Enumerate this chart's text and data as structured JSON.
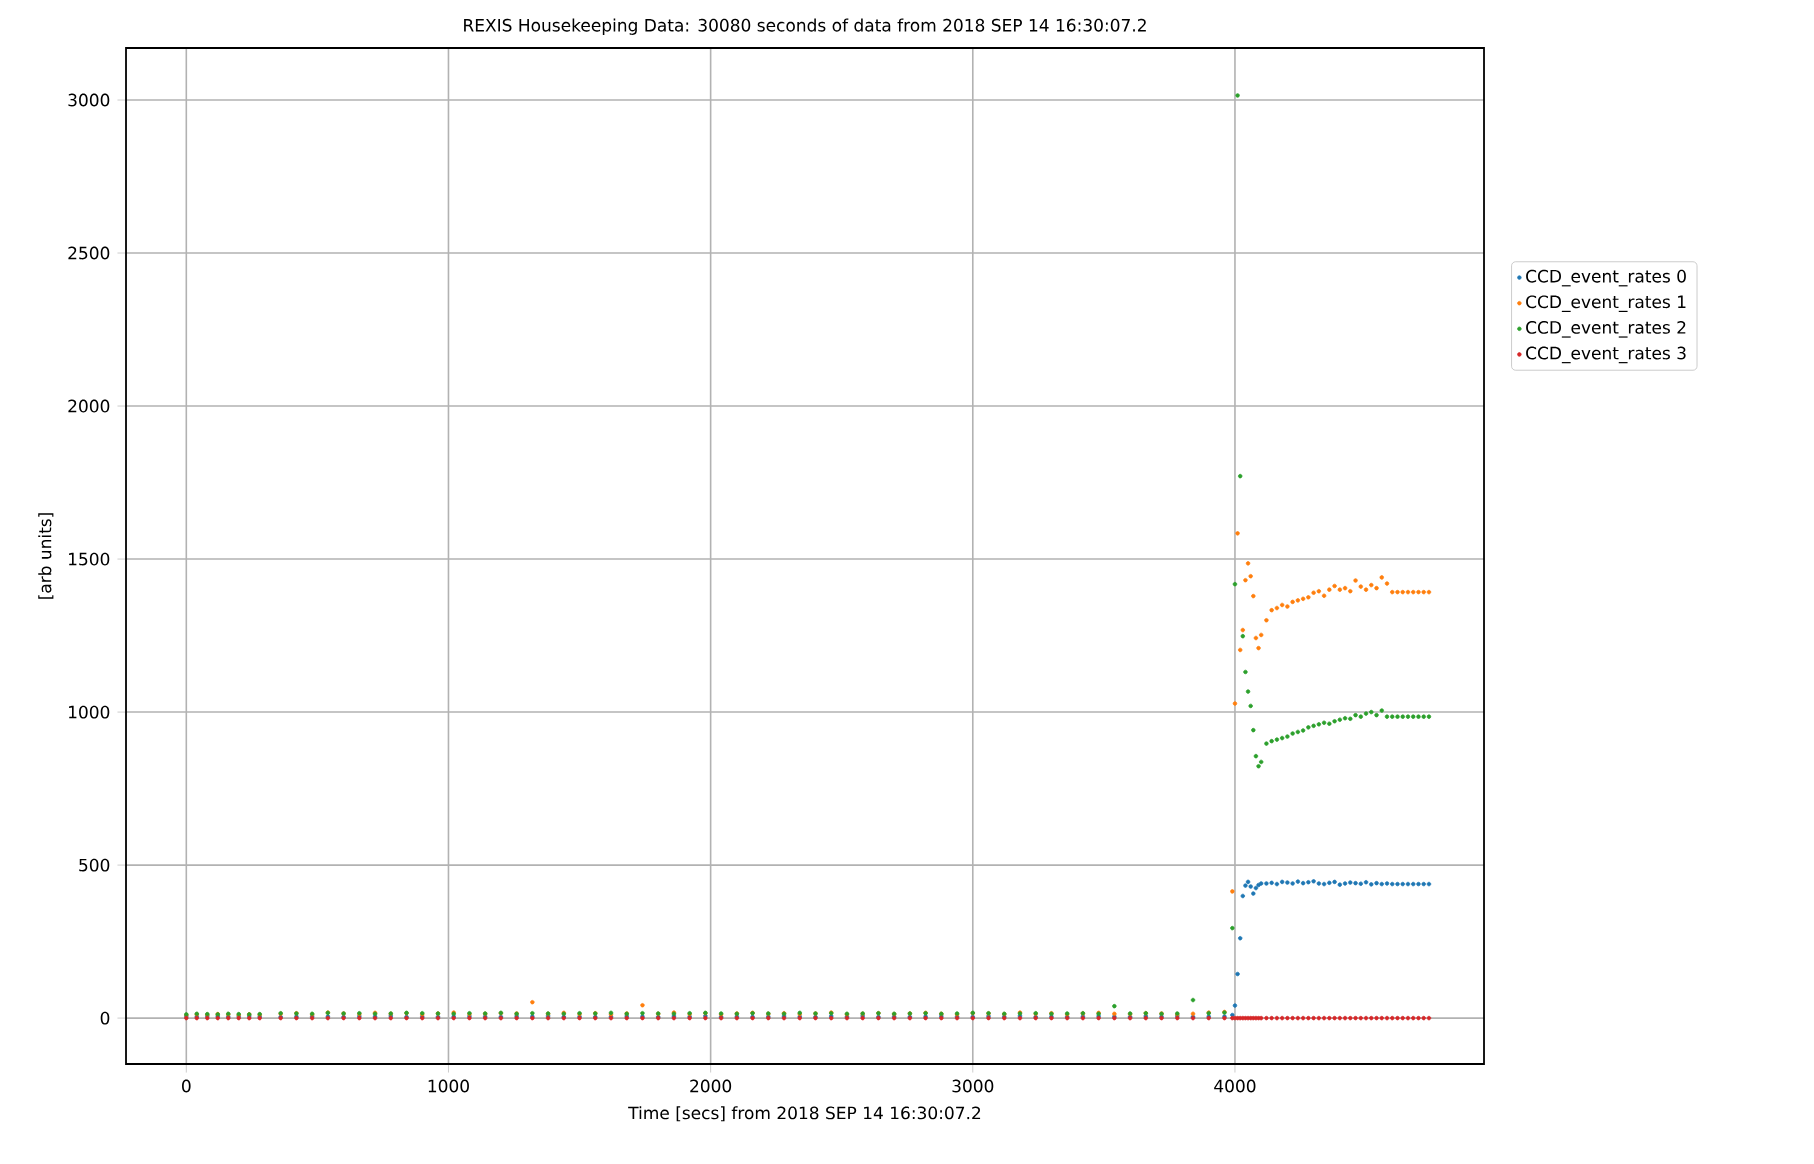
{
  "chart_data": {
    "type": "scatter",
    "title": "REXIS Housekeeping Data: 30080 seconds of data from 2018 SEP 14 16:30:07.2",
    "xlabel": "Time [secs] from 2018 SEP 14 16:30:07.2",
    "ylabel": "[arb units]",
    "xlim": [
      -230,
      4950
    ],
    "ylim": [
      -150,
      3170
    ],
    "xticks": [
      0,
      1000,
      2000,
      3000,
      4000
    ],
    "yticks": [
      0,
      500,
      1000,
      1500,
      2000,
      2500,
      3000
    ],
    "grid": true,
    "legend": "right",
    "marker": "circle",
    "x": [
      0,
      40,
      80,
      120,
      160,
      200,
      240,
      280,
      360,
      420,
      480,
      540,
      600,
      660,
      720,
      780,
      840,
      900,
      960,
      1020,
      1080,
      1140,
      1200,
      1260,
      1320,
      1380,
      1440,
      1500,
      1560,
      1620,
      1680,
      1740,
      1800,
      1860,
      1920,
      1980,
      2040,
      2100,
      2160,
      2220,
      2280,
      2340,
      2400,
      2460,
      2520,
      2580,
      2640,
      2700,
      2760,
      2820,
      2880,
      2940,
      3000,
      3060,
      3120,
      3180,
      3240,
      3300,
      3360,
      3420,
      3480,
      3540,
      3600,
      3660,
      3720,
      3780,
      3840,
      3900,
      3960,
      3990,
      4000,
      4010,
      4020,
      4030,
      4040,
      4050,
      4060,
      4070,
      4080,
      4090,
      4100,
      4120,
      4140,
      4160,
      4180,
      4200,
      4220,
      4240,
      4260,
      4280,
      4300,
      4320,
      4340,
      4360,
      4380,
      4400,
      4420,
      4440,
      4460,
      4480,
      4500,
      4520,
      4540,
      4560,
      4580,
      4600,
      4620,
      4640,
      4660,
      4680,
      4700,
      4720,
      4740
    ],
    "series": [
      {
        "name": "CCD_event_rates 0",
        "color": "#1f77b4",
        "values": [
          6,
          5,
          7,
          6,
          5,
          6,
          7,
          5,
          4,
          5,
          6,
          5,
          4,
          6,
          5,
          7,
          4,
          5,
          4,
          5,
          6,
          5,
          4,
          6,
          5,
          7,
          4,
          5,
          4,
          5,
          6,
          5,
          4,
          6,
          5,
          7,
          4,
          5,
          4,
          5,
          6,
          5,
          4,
          6,
          5,
          7,
          4,
          5,
          4,
          5,
          6,
          5,
          4,
          6,
          5,
          7,
          4,
          5,
          4,
          5,
          6,
          5,
          4,
          6,
          5,
          7,
          4,
          5,
          5,
          10,
          41,
          144,
          261,
          399,
          433,
          445,
          430,
          407,
          425,
          435,
          440,
          440,
          442,
          438,
          445,
          443,
          440,
          446,
          441,
          444,
          447,
          440,
          438,
          442,
          445,
          436,
          440,
          443,
          441,
          439,
          444,
          437,
          441,
          438,
          440,
          438,
          438,
          438,
          438,
          438,
          438,
          438,
          438
        ]
      },
      {
        "name": "CCD_event_rates 1",
        "color": "#ff7f0e",
        "values": [
          10,
          12,
          11,
          13,
          12,
          10,
          12,
          11,
          14,
          16,
          12,
          18,
          15,
          13,
          17,
          14,
          16,
          12,
          15,
          18,
          13,
          14,
          16,
          15,
          52,
          14,
          17,
          13,
          16,
          12,
          15,
          42,
          14,
          18,
          13,
          16,
          12,
          15,
          17,
          14,
          16,
          13,
          15,
          18,
          12,
          14,
          16,
          13,
          15,
          17,
          14,
          12,
          16,
          15,
          13,
          18,
          14,
          16,
          12,
          15,
          17,
          14,
          13,
          16,
          15,
          12,
          14,
          18,
          20,
          414,
          1028,
          1584,
          1203,
          1268,
          1431,
          1486,
          1444,
          1379,
          1242,
          1209,
          1252,
          1300,
          1333,
          1340,
          1350,
          1345,
          1360,
          1365,
          1370,
          1375,
          1390,
          1395,
          1380,
          1400,
          1412,
          1400,
          1405,
          1395,
          1430,
          1410,
          1400,
          1415,
          1405,
          1440,
          1420,
          1392,
          1392,
          1392,
          1392,
          1392,
          1392,
          1392,
          1392
        ]
      },
      {
        "name": "CCD_event_rates 2",
        "color": "#2ca02c",
        "values": [
          12,
          14,
          13,
          12,
          14,
          13,
          12,
          13,
          16,
          15,
          14,
          17,
          15,
          16,
          14,
          15,
          17,
          16,
          15,
          14,
          16,
          15,
          17,
          14,
          16,
          15,
          14,
          16,
          15,
          17,
          14,
          16,
          15,
          14,
          16,
          17,
          15,
          14,
          16,
          15,
          14,
          17,
          15,
          16,
          14,
          15,
          16,
          14,
          15,
          16,
          14,
          15,
          17,
          16,
          14,
          15,
          16,
          14,
          15,
          16,
          14,
          39,
          15,
          16,
          14,
          15,
          59,
          16,
          18,
          294,
          1418,
          3015,
          1771,
          1248,
          1131,
          1067,
          1020,
          941,
          856,
          823,
          837,
          897,
          905,
          910,
          915,
          920,
          930,
          935,
          940,
          950,
          955,
          960,
          965,
          962,
          970,
          975,
          980,
          978,
          990,
          985,
          995,
          1000,
          990,
          1005,
          985,
          985,
          985,
          985,
          985,
          985,
          985,
          985,
          985
        ]
      },
      {
        "name": "CCD_event_rates 3",
        "color": "#d62728",
        "values": [
          0,
          0,
          0,
          0,
          0,
          0,
          0,
          0,
          0,
          0,
          0,
          0,
          0,
          0,
          0,
          0,
          0,
          0,
          0,
          0,
          0,
          0,
          0,
          0,
          0,
          0,
          0,
          0,
          0,
          0,
          0,
          0,
          0,
          0,
          0,
          0,
          0,
          0,
          0,
          0,
          0,
          0,
          0,
          0,
          0,
          0,
          0,
          0,
          0,
          0,
          0,
          0,
          0,
          0,
          0,
          0,
          0,
          0,
          0,
          0,
          0,
          0,
          0,
          0,
          0,
          0,
          0,
          0,
          0,
          0,
          0,
          0,
          0,
          0,
          0,
          0,
          0,
          0,
          0,
          0,
          0,
          0,
          0,
          0,
          0,
          0,
          0,
          0,
          0,
          0,
          0,
          0,
          0,
          0,
          0,
          0,
          0,
          0,
          0,
          0,
          0,
          0,
          0,
          0,
          0,
          0,
          0,
          0,
          0,
          0,
          0,
          0,
          0
        ]
      }
    ]
  }
}
